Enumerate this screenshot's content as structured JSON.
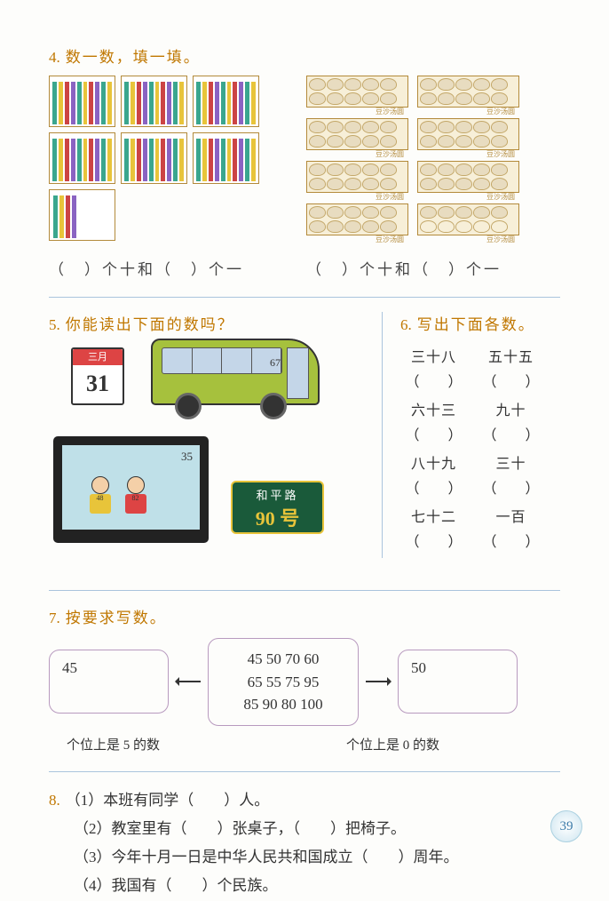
{
  "q4": {
    "num": "4.",
    "title": "数一数，填一填。",
    "pencilBoxes": [
      10,
      10,
      10,
      10,
      10,
      10,
      4
    ],
    "dumplingTrays": [
      10,
      10,
      10,
      10,
      10,
      10,
      10,
      5
    ],
    "trayLabel": "豆沙汤圆",
    "answerL": "（　）个十和（　）个一",
    "answerR": "（　）个十和（　）个一",
    "colors": {
      "p1": "#3aa68e",
      "p2": "#e8c43a",
      "p3": "#c44",
      "p4": "#8a63c2"
    }
  },
  "q5": {
    "num": "5.",
    "title": "你能读出下面的数吗？",
    "calendar": {
      "month": "三月",
      "day": "31"
    },
    "bus": {
      "number": "67",
      "color": "#a6c13d"
    },
    "tv": {
      "corner": "35",
      "bib1": "48",
      "bib2": "82"
    },
    "sign": {
      "line1": "和平路",
      "line2": "90 号",
      "bg": "#1a5a3a",
      "accent": "#e8c43a"
    }
  },
  "q6": {
    "num": "6.",
    "title": "写出下面各数。",
    "items": [
      [
        "三十八",
        "五十五"
      ],
      [
        "六十三",
        "九十"
      ],
      [
        "八十九",
        "三十"
      ],
      [
        "七十二",
        "一百"
      ]
    ],
    "blank": "（　　）"
  },
  "q7": {
    "num": "7.",
    "title": "按要求写数。",
    "leftBox": "45",
    "midBox": [
      "45 50 70 60",
      "65 55 75 95",
      "85 90 80 100"
    ],
    "rightBox": "50",
    "labelL": "个位上是 5 的数",
    "labelR": "个位上是 0 的数"
  },
  "q8": {
    "num": "8.",
    "lines": [
      "（1）本班有同学（　　）人。",
      "（2）教室里有（　　）张桌子，（　　）把椅子。",
      "（3）今年十月一日是中华人民共和国成立（　　）周年。",
      "（4）我国有（　　）个民族。"
    ]
  },
  "pageNumber": "39"
}
